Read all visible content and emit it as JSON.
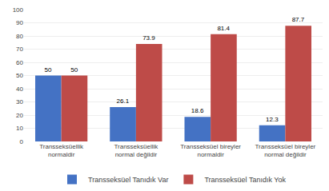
{
  "chart_data": {
    "type": "bar",
    "categories": [
      "Transseksüellik\nnormaldir",
      "Transseksüellik\nnormal değildir",
      "Transseksüel bireyler\nnormaldir",
      "Transseksüel bireyler\nnormal değildir"
    ],
    "series": [
      {
        "name": "Transseksüel Tanıdık Var",
        "color": "#4472C4",
        "values": [
          50,
          26.1,
          18.6,
          12.3
        ]
      },
      {
        "name": "Transseksüel Tanıdık Yok",
        "color": "#BE4B48",
        "values": [
          50,
          73.9,
          81.4,
          87.7
        ]
      }
    ],
    "ylim": [
      0,
      100
    ],
    "yticks": [
      0,
      10,
      20,
      30,
      40,
      50,
      60,
      70,
      80,
      90,
      100
    ],
    "grid": true,
    "data_labels": true,
    "legend": "bottom"
  }
}
